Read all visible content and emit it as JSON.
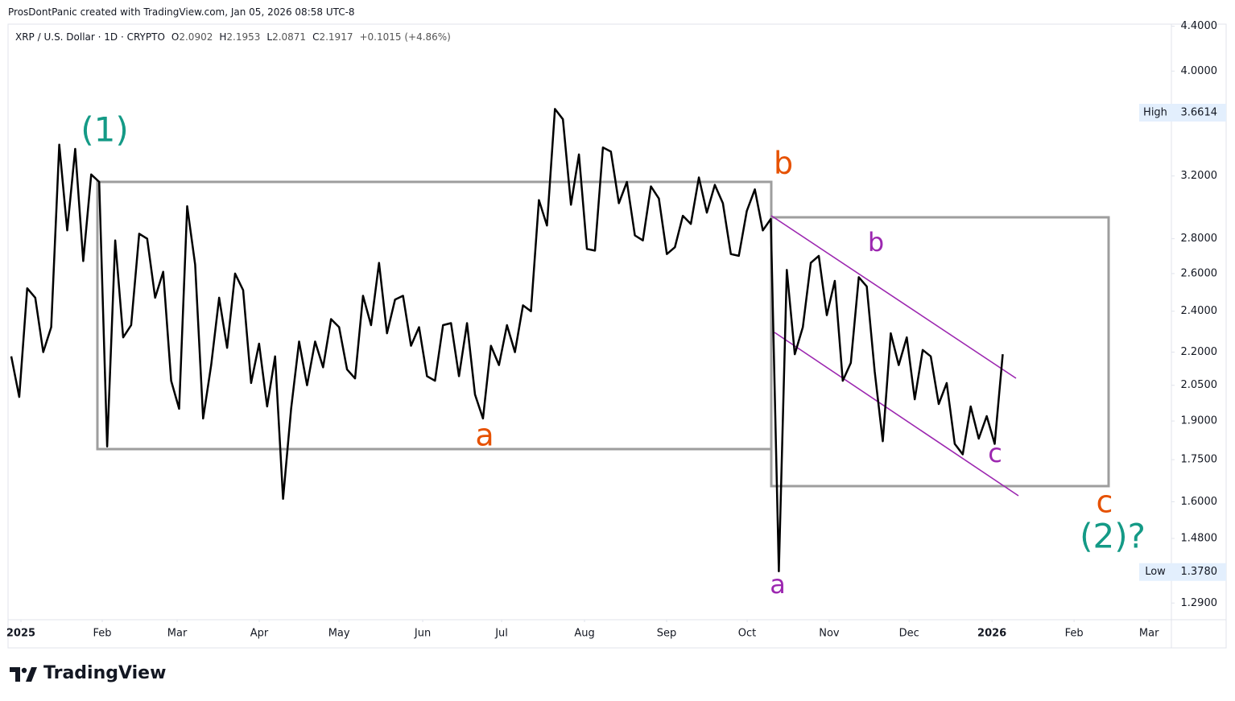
{
  "header": "ProsDontPanic created with TradingView.com, Jan 05, 2026 08:58 UTC-8",
  "legend": {
    "symbol": "XRP / U.S. Dollar · 1D · CRYPTO",
    "ohlc": [
      {
        "label": "O",
        "value": "2.0902"
      },
      {
        "label": "H",
        "value": "2.1953"
      },
      {
        "label": "L",
        "value": "2.0871"
      },
      {
        "label": "C",
        "value": "2.1917"
      }
    ],
    "change": "+0.1015 (+4.86%)"
  },
  "waves": [
    "(1)",
    "b",
    "a",
    "b",
    "c",
    "a",
    "c",
    "(2)?"
  ],
  "footer": "TradingView",
  "chart_data": {
    "type": "line",
    "log": true,
    "grid": false,
    "series": [
      {
        "name": "XRP / U.S. Dollar",
        "color": "#000000",
        "values": [
          2.18,
          2.0,
          2.52,
          2.47,
          2.2,
          2.32,
          3.42,
          2.85,
          3.39,
          2.67,
          3.21,
          3.16,
          1.8,
          2.79,
          2.27,
          2.33,
          2.83,
          2.8,
          2.47,
          2.61,
          2.07,
          1.95,
          3.0,
          2.65,
          1.91,
          2.14,
          2.47,
          2.22,
          2.6,
          2.51,
          2.06,
          2.24,
          1.96,
          2.18,
          1.61,
          1.95,
          2.25,
          2.05,
          2.25,
          2.13,
          2.36,
          2.32,
          2.12,
          2.08,
          2.48,
          2.33,
          2.66,
          2.29,
          2.46,
          2.48,
          2.23,
          2.32,
          2.09,
          2.07,
          2.33,
          2.34,
          2.09,
          2.34,
          2.01,
          1.91,
          2.23,
          2.14,
          2.33,
          2.2,
          2.43,
          2.4,
          3.04,
          2.88,
          3.69,
          3.61,
          3.01,
          3.35,
          2.74,
          2.73,
          3.4,
          3.37,
          3.02,
          3.16,
          2.82,
          2.79,
          3.13,
          3.05,
          2.71,
          2.75,
          2.94,
          2.89,
          3.19,
          2.96,
          3.14,
          3.02,
          2.71,
          2.7,
          2.97,
          3.11,
          2.85,
          2.92,
          1.38,
          2.62,
          2.19,
          2.32,
          2.66,
          2.7,
          2.38,
          2.56,
          2.07,
          2.15,
          2.58,
          2.53,
          2.11,
          1.82,
          2.29,
          2.14,
          2.27,
          1.99,
          2.21,
          2.18,
          1.97,
          2.06,
          1.81,
          1.77,
          1.96,
          1.83,
          1.92,
          1.81,
          2.19
        ]
      }
    ],
    "xlim": [
      -0.4,
      145.1
    ],
    "xticks": [
      {
        "value": 1.21,
        "label": "2025",
        "bold": true
      },
      {
        "value": 11.38,
        "label": "Feb"
      },
      {
        "value": 20.75,
        "label": "Mar"
      },
      {
        "value": 31.02,
        "label": "Apr"
      },
      {
        "value": 41.0,
        "label": "May"
      },
      {
        "value": 51.46,
        "label": "Jun"
      },
      {
        "value": 61.33,
        "label": "Jul"
      },
      {
        "value": 71.7,
        "label": "Aug"
      },
      {
        "value": 81.97,
        "label": "Sep"
      },
      {
        "value": 92.04,
        "label": "Oct"
      },
      {
        "value": 102.3,
        "label": "Nov"
      },
      {
        "value": 112.3,
        "label": "Dec"
      },
      {
        "value": 122.66,
        "label": "2026",
        "bold": true
      },
      {
        "value": 132.93,
        "label": "Feb"
      },
      {
        "value": 142.3,
        "label": "Mar"
      }
    ],
    "ylim": [
      1.245,
      4.42
    ],
    "yticks": [
      {
        "value": 4.4,
        "label": "4.4000"
      },
      {
        "value": 4.0,
        "label": "4.0000"
      },
      {
        "value": 3.2,
        "label": "3.2000"
      },
      {
        "value": 2.8,
        "label": "2.8000"
      },
      {
        "value": 2.6,
        "label": "2.6000"
      },
      {
        "value": 2.4,
        "label": "2.4000"
      },
      {
        "value": 2.2,
        "label": "2.2000"
      },
      {
        "value": 2.05,
        "label": "2.0500"
      },
      {
        "value": 1.9,
        "label": "1.9000"
      },
      {
        "value": 1.75,
        "label": "1.7500"
      },
      {
        "value": 1.6,
        "label": "1.6000"
      },
      {
        "value": 1.48,
        "label": "1.4800"
      },
      {
        "value": 1.29,
        "label": "1.2900"
      }
    ],
    "markers": [
      {
        "name": "High",
        "value": 3.6614,
        "label": "3.6614"
      },
      {
        "name": "Low",
        "value": 1.378,
        "label": "1.3780"
      }
    ]
  }
}
